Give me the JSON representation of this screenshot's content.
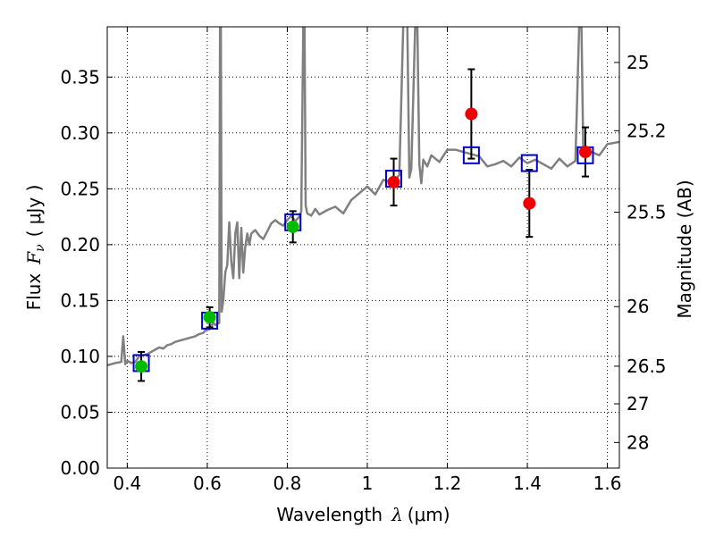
{
  "chart_data": {
    "type": "scatter",
    "xlabel": {
      "prefix": "Wavelength",
      "symbol": "λ",
      "unit": "(μm)"
    },
    "ylabel": {
      "prefix": "Flux",
      "symbol": "F",
      "subscript": "ν",
      "unit": "( μJy )"
    },
    "y2label": "Magnitude (AB)",
    "xlim": [
      0.35,
      1.63
    ],
    "ylim": [
      0.0,
      0.395
    ],
    "grid": true,
    "x_ticks": [
      0.4,
      0.6,
      0.8,
      1.0,
      1.2,
      1.4,
      1.6
    ],
    "x_tick_labels": [
      "0.4",
      "0.6",
      "0.8",
      "1",
      "1.2",
      "1.4",
      "1.6"
    ],
    "y_ticks": [
      0.0,
      0.05,
      0.1,
      0.15,
      0.2,
      0.25,
      0.3,
      0.35
    ],
    "y_tick_labels": [
      "0.00",
      "0.05",
      "0.10",
      "0.15",
      "0.20",
      "0.25",
      "0.30",
      "0.35"
    ],
    "y2_ticks": [
      25,
      25.2,
      25.5,
      26,
      26.5,
      27,
      28
    ],
    "y2_tick_labels": [
      "25",
      "25.2",
      "25.5",
      "26",
      "26.5",
      "27",
      "28"
    ],
    "colors": {
      "spectrum": "#808080",
      "model": "#0000cc",
      "green": "#00bb00",
      "red": "#ee0000",
      "errbar": "#000000"
    },
    "model_series": {
      "marker": "open-square",
      "x": [
        0.435,
        0.606,
        0.814,
        1.066,
        1.26,
        1.405,
        1.545
      ],
      "y": [
        0.094,
        0.132,
        0.22,
        0.259,
        0.28,
        0.273,
        0.28
      ]
    },
    "green_series": {
      "marker": "filled-circle",
      "x": [
        0.435,
        0.606,
        0.814
      ],
      "y": [
        0.091,
        0.135,
        0.216
      ],
      "yerr": [
        0.013,
        0.009,
        0.014
      ]
    },
    "red_series": {
      "marker": "filled-circle",
      "x": [
        1.066,
        1.26,
        1.405,
        1.545
      ],
      "y": [
        0.256,
        0.317,
        0.237,
        0.283
      ],
      "yerr": [
        0.021,
        0.04,
        0.03,
        0.022
      ]
    },
    "spectrum": {
      "x": [
        0.35,
        0.37,
        0.385,
        0.39,
        0.395,
        0.4,
        0.41,
        0.42,
        0.43,
        0.44,
        0.45,
        0.46,
        0.47,
        0.48,
        0.49,
        0.5,
        0.51,
        0.52,
        0.53,
        0.54,
        0.55,
        0.56,
        0.57,
        0.58,
        0.59,
        0.6,
        0.605,
        0.61,
        0.615,
        0.62,
        0.625,
        0.63,
        0.632,
        0.634,
        0.636,
        0.64,
        0.645,
        0.65,
        0.655,
        0.66,
        0.665,
        0.67,
        0.675,
        0.68,
        0.685,
        0.69,
        0.695,
        0.7,
        0.705,
        0.71,
        0.72,
        0.73,
        0.74,
        0.75,
        0.76,
        0.77,
        0.78,
        0.79,
        0.8,
        0.81,
        0.82,
        0.83,
        0.835,
        0.84,
        0.843,
        0.846,
        0.85,
        0.86,
        0.87,
        0.88,
        0.9,
        0.92,
        0.94,
        0.96,
        0.98,
        1.0,
        1.02,
        1.04,
        1.06,
        1.08,
        1.09,
        1.1,
        1.105,
        1.11,
        1.12,
        1.125,
        1.13,
        1.135,
        1.14,
        1.15,
        1.16,
        1.18,
        1.2,
        1.22,
        1.24,
        1.26,
        1.28,
        1.3,
        1.32,
        1.34,
        1.36,
        1.38,
        1.4,
        1.42,
        1.44,
        1.46,
        1.48,
        1.5,
        1.52,
        1.53,
        1.535,
        1.54,
        1.545,
        1.55,
        1.56,
        1.58,
        1.6,
        1.63
      ],
      "y": [
        0.092,
        0.094,
        0.095,
        0.118,
        0.093,
        0.096,
        0.094,
        0.095,
        0.1,
        0.101,
        0.102,
        0.104,
        0.106,
        0.108,
        0.107,
        0.11,
        0.111,
        0.113,
        0.114,
        0.115,
        0.116,
        0.117,
        0.118,
        0.12,
        0.121,
        0.125,
        0.124,
        0.127,
        0.13,
        0.128,
        0.129,
        0.13,
        0.4,
        0.4,
        0.14,
        0.15,
        0.175,
        0.182,
        0.22,
        0.185,
        0.17,
        0.21,
        0.22,
        0.17,
        0.215,
        0.175,
        0.198,
        0.21,
        0.2,
        0.21,
        0.213,
        0.208,
        0.205,
        0.212,
        0.219,
        0.222,
        0.219,
        0.217,
        0.222,
        0.226,
        0.221,
        0.225,
        0.23,
        0.4,
        0.4,
        0.235,
        0.228,
        0.226,
        0.232,
        0.227,
        0.231,
        0.234,
        0.228,
        0.24,
        0.246,
        0.252,
        0.245,
        0.258,
        0.256,
        0.262,
        0.4,
        0.4,
        0.26,
        0.268,
        0.4,
        0.4,
        0.272,
        0.255,
        0.276,
        0.27,
        0.28,
        0.274,
        0.285,
        0.285,
        0.283,
        0.281,
        0.279,
        0.27,
        0.272,
        0.275,
        0.27,
        0.278,
        0.273,
        0.276,
        0.272,
        0.268,
        0.277,
        0.27,
        0.275,
        0.4,
        0.4,
        0.28,
        0.28,
        0.282,
        0.283,
        0.28,
        0.29,
        0.292
      ]
    }
  }
}
